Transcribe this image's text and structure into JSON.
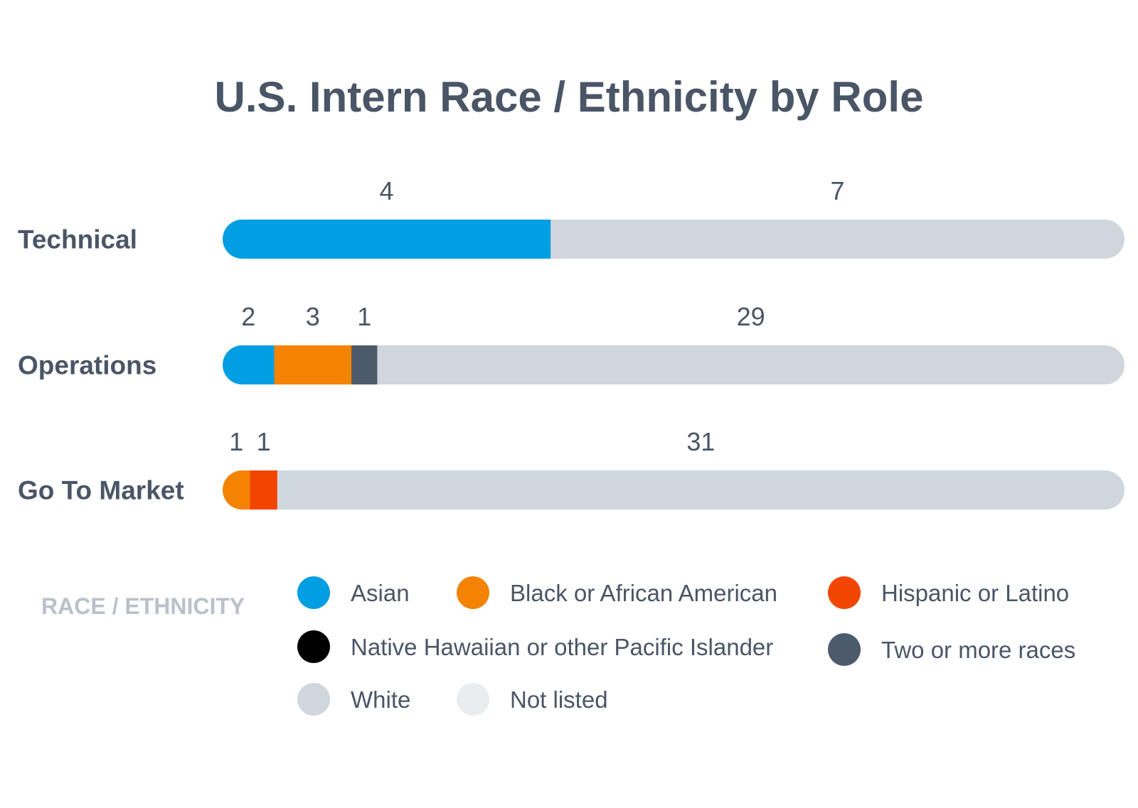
{
  "chart_data": {
    "type": "bar",
    "orientation": "horizontal",
    "stacked": true,
    "title": "U.S. Intern Race / Ethnicity by Role",
    "categories": [
      "Technical",
      "Operations",
      "Go To Market"
    ],
    "series": [
      {
        "name": "Asian",
        "color": "#009ee3",
        "values": [
          4,
          2,
          0
        ]
      },
      {
        "name": "Black or African American",
        "color": "#f38300",
        "values": [
          0,
          3,
          1
        ]
      },
      {
        "name": "Hispanic or Latino",
        "color": "#f24500",
        "values": [
          0,
          0,
          1
        ]
      },
      {
        "name": "Native Hawaiian or other Pacific Islander",
        "color": "#000000",
        "values": [
          0,
          0,
          0
        ]
      },
      {
        "name": "Two or more races",
        "color": "#4c5b6c",
        "values": [
          0,
          1,
          0
        ]
      },
      {
        "name": "White",
        "color": "#cfd6dc",
        "values": [
          7,
          29,
          31
        ]
      },
      {
        "name": "Not listed",
        "color": "#e9edf0",
        "values": [
          0,
          0,
          0
        ]
      }
    ],
    "legend": {
      "title": "RACE / ETHNICITY",
      "placement": "bottom"
    },
    "grid": false
  }
}
